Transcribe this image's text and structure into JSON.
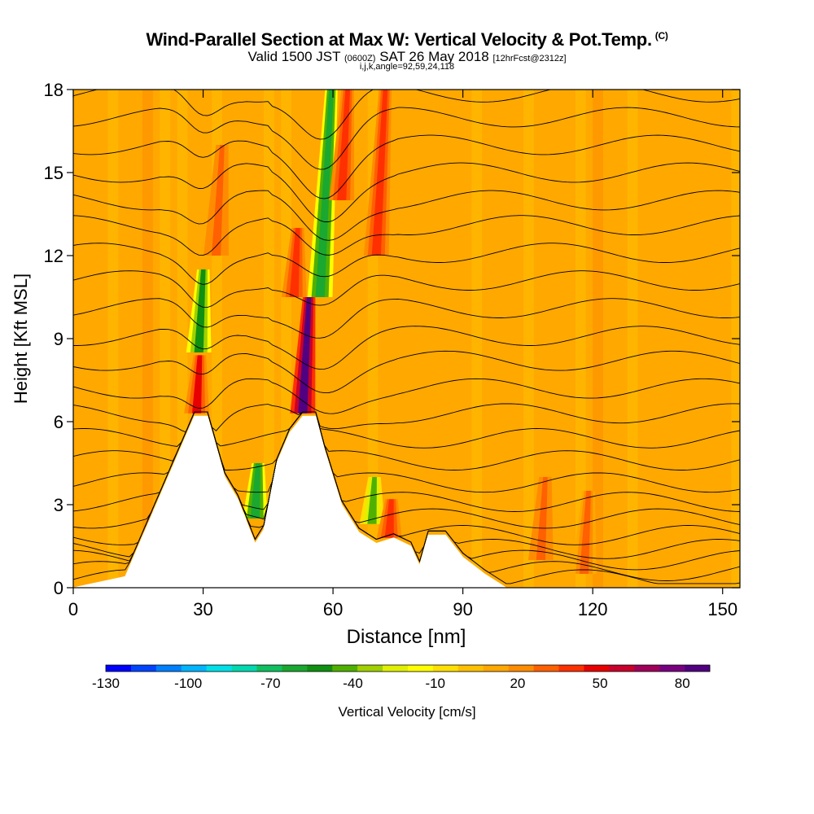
{
  "title": "Wind-Parallel Section at Max W: Vertical Velocity & Pot.Temp.",
  "copyright_mark": "(C)",
  "subtitle": {
    "valid_prefix": "Valid 1500 JST",
    "utc": "(0600Z)",
    "date": "SAT 26 May 2018",
    "forecast": "[12hrFcst@2312z]"
  },
  "index_line": "i,j,k,angle=92,59,24,118",
  "chart_data": {
    "type": "heatmap",
    "title": "Wind-Parallel Section at Max W: Vertical Velocity & Pot.Temp.",
    "xlabel": "Distance [nm]",
    "ylabel": "Height [Kft MSL]",
    "xlim": [
      0,
      154
    ],
    "ylim": [
      0,
      18
    ],
    "x_ticks": [
      0,
      30,
      60,
      90,
      120,
      150
    ],
    "y_ticks": [
      0,
      3,
      6,
      9,
      12,
      15,
      18
    ],
    "colorbar": {
      "label": "Vertical Velocity [cm/s]",
      "tick_labels": [
        "-130",
        "-100",
        "-70",
        "-40",
        "-10",
        "20",
        "50",
        "80"
      ],
      "tick_values": [
        -130,
        -100,
        -70,
        -40,
        -10,
        20,
        50,
        80
      ],
      "range": [
        -130,
        90
      ],
      "colors": [
        "#0000ff",
        "#0044ff",
        "#0080ff",
        "#00b4ff",
        "#00e0e8",
        "#00d8b0",
        "#10c060",
        "#1aa830",
        "#109010",
        "#50b000",
        "#a0d000",
        "#e0f000",
        "#ffff00",
        "#ffe000",
        "#ffc000",
        "#ffa800",
        "#ff8c00",
        "#ff6000",
        "#ff3000",
        "#e80000",
        "#c8002c",
        "#a0005a",
        "#780080",
        "#500080"
      ]
    },
    "background_value": 10,
    "terrain_profile": {
      "x": [
        0,
        12,
        28,
        31,
        35,
        38,
        40,
        42,
        44,
        47,
        50,
        53,
        56,
        58,
        62,
        66,
        70,
        74,
        78,
        80,
        82,
        86,
        90,
        95,
        100,
        154
      ],
      "height": [
        0,
        0.4,
        6.2,
        6.2,
        4,
        3.2,
        2.4,
        1.6,
        2.1,
        4.5,
        5.6,
        6.2,
        6.2,
        5,
        3,
        2,
        1.6,
        1.8,
        1.5,
        0.8,
        1.9,
        1.9,
        1.1,
        0.5,
        0,
        0
      ]
    },
    "velocity_features": [
      {
        "x": 29,
        "y_top": 11.5,
        "y_bottom": 8.5,
        "w": -55
      },
      {
        "x": 28.5,
        "y_top": 8.4,
        "y_bottom": 6.3,
        "w": 45
      },
      {
        "x": 33,
        "y_top": 16,
        "y_bottom": 12,
        "w": 30
      },
      {
        "x": 42,
        "y_top": 4.5,
        "y_bottom": 2.5,
        "w": -60
      },
      {
        "x": 53,
        "y_top": 10.5,
        "y_bottom": 6.3,
        "w": 82
      },
      {
        "x": 51,
        "y_top": 13,
        "y_bottom": 10.5,
        "w": 40
      },
      {
        "x": 57,
        "y_top": 18,
        "y_bottom": 10.5,
        "w": -60
      },
      {
        "x": 62,
        "y_top": 18,
        "y_bottom": 14,
        "w": 40
      },
      {
        "x": 70,
        "y_top": 18,
        "y_bottom": 12,
        "w": 35
      },
      {
        "x": 69,
        "y_top": 4,
        "y_bottom": 2.3,
        "w": -40
      },
      {
        "x": 73,
        "y_top": 3.2,
        "y_bottom": 1.8,
        "w": 40
      },
      {
        "x": 108,
        "y_top": 4,
        "y_bottom": 1,
        "w": 30
      },
      {
        "x": 118,
        "y_top": 3.5,
        "y_bottom": 0.5,
        "w": 28
      }
    ],
    "isentropes_base_kft": [
      0.3,
      0.6,
      1.0,
      1.4,
      1.9,
      2.5,
      3.1,
      3.8,
      4.6,
      5.4,
      6.3,
      7.2,
      8.2,
      9.1,
      10.1,
      11.1,
      12.1,
      13.1,
      14.0,
      15.0,
      16.0,
      17.0,
      17.9
    ]
  }
}
